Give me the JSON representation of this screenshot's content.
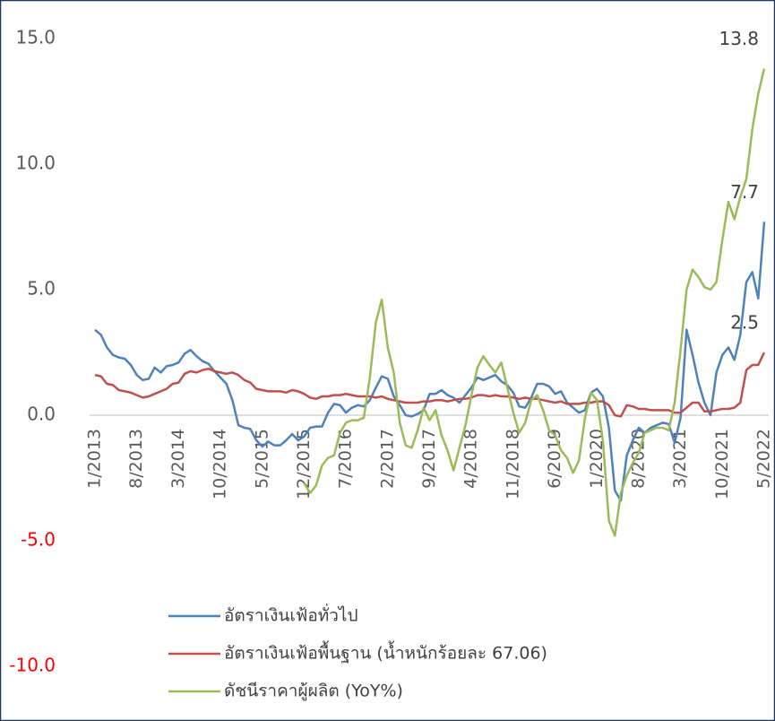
{
  "chart_data": {
    "type": "line",
    "categories": [
      "1/2013",
      null,
      null,
      null,
      null,
      null,
      null,
      "8/2013",
      null,
      null,
      null,
      null,
      null,
      null,
      "3/2014",
      null,
      null,
      null,
      null,
      null,
      null,
      "10/2014",
      null,
      null,
      null,
      null,
      null,
      null,
      "5/2015",
      null,
      null,
      null,
      null,
      null,
      null,
      "12/2015",
      null,
      null,
      null,
      null,
      null,
      null,
      "7/2016",
      null,
      null,
      null,
      null,
      null,
      null,
      "2/2017",
      null,
      null,
      null,
      null,
      null,
      null,
      "9/2017",
      null,
      null,
      null,
      null,
      null,
      null,
      "4/2018",
      null,
      null,
      null,
      null,
      null,
      null,
      "11/2018",
      null,
      null,
      null,
      null,
      null,
      null,
      "6/2019",
      null,
      null,
      null,
      null,
      null,
      null,
      "1/2020",
      null,
      null,
      null,
      null,
      null,
      null,
      "8/2020",
      null,
      null,
      null,
      null,
      null,
      null,
      "3/2021",
      null,
      null,
      null,
      null,
      null,
      null,
      "10/2021",
      null,
      null,
      null,
      null,
      null,
      null,
      "5/2022"
    ],
    "series": [
      {
        "name": "อัตราเงินเฟ้อทั่วไป",
        "color": "#4f81bd",
        "values": [
          3.4,
          3.2,
          2.7,
          2.4,
          2.3,
          2.25,
          2.0,
          1.6,
          1.4,
          1.45,
          1.9,
          1.7,
          1.95,
          2.0,
          2.1,
          2.45,
          2.6,
          2.35,
          2.15,
          2.05,
          1.75,
          1.5,
          1.25,
          0.6,
          -0.4,
          -0.5,
          -0.55,
          -1.0,
          -1.25,
          -1.05,
          -1.2,
          -1.2,
          -1.0,
          -0.75,
          -1.0,
          -0.85,
          -0.5,
          -0.45,
          -0.45,
          0.1,
          0.45,
          0.4,
          0.1,
          0.3,
          0.4,
          0.35,
          0.6,
          1.1,
          1.55,
          1.45,
          0.75,
          0.4,
          0.0,
          -0.05,
          0.05,
          0.2,
          0.85,
          0.85,
          1.0,
          0.8,
          0.7,
          0.5,
          0.8,
          1.1,
          1.5,
          1.4,
          1.5,
          1.6,
          1.35,
          1.2,
          0.9,
          0.35,
          0.3,
          0.7,
          1.25,
          1.25,
          1.15,
          0.85,
          0.95,
          0.5,
          0.3,
          0.1,
          0.2,
          0.9,
          1.05,
          0.75,
          -0.5,
          -3.0,
          -3.4,
          -1.6,
          -1.0,
          -0.5,
          -0.7,
          -0.5,
          -0.4,
          -0.3,
          -0.35,
          -1.1,
          -0.1,
          3.4,
          2.4,
          1.3,
          0.5,
          0.0,
          1.7,
          2.4,
          2.7,
          2.2,
          3.2,
          5.3,
          5.7,
          4.65,
          7.7
        ]
      },
      {
        "name": "อัตราเงินเฟ้อพื้นฐาน (น้ำหนักร้อยละ 67.06)",
        "color": "#c0504d",
        "values": [
          1.6,
          1.55,
          1.25,
          1.2,
          1.0,
          0.95,
          0.9,
          0.8,
          0.7,
          0.75,
          0.85,
          0.95,
          1.05,
          1.25,
          1.3,
          1.65,
          1.75,
          1.7,
          1.8,
          1.85,
          1.75,
          1.7,
          1.65,
          1.7,
          1.6,
          1.4,
          1.3,
          1.05,
          1.0,
          0.95,
          0.95,
          0.95,
          0.9,
          1.0,
          0.95,
          0.85,
          0.7,
          0.65,
          0.75,
          0.75,
          0.8,
          0.8,
          0.85,
          0.8,
          0.75,
          0.75,
          0.75,
          0.7,
          0.75,
          0.65,
          0.6,
          0.55,
          0.5,
          0.5,
          0.5,
          0.55,
          0.55,
          0.6,
          0.6,
          0.55,
          0.6,
          0.65,
          0.65,
          0.7,
          0.8,
          0.8,
          0.75,
          0.8,
          0.75,
          0.75,
          0.7,
          0.65,
          0.7,
          0.65,
          0.65,
          0.6,
          0.55,
          0.5,
          0.55,
          0.45,
          0.45,
          0.45,
          0.5,
          0.5,
          0.55,
          0.55,
          0.4,
          0.0,
          -0.05,
          0.4,
          0.35,
          0.25,
          0.25,
          0.2,
          0.2,
          0.2,
          0.2,
          0.1,
          0.1,
          0.3,
          0.5,
          0.5,
          0.15,
          0.15,
          0.2,
          0.25,
          0.25,
          0.3,
          0.5,
          1.8,
          2.0,
          2.0,
          2.5
        ]
      },
      {
        "name": "ดัชนีราคาผู้ผลิต (YoY%)",
        "color": "#9bbb59",
        "values": [
          null,
          null,
          null,
          null,
          null,
          null,
          null,
          null,
          null,
          null,
          null,
          null,
          null,
          null,
          null,
          null,
          null,
          null,
          null,
          null,
          null,
          null,
          null,
          null,
          null,
          null,
          null,
          null,
          null,
          null,
          null,
          null,
          null,
          null,
          null,
          -2.7,
          -3.1,
          -2.8,
          -2.0,
          -1.7,
          -1.6,
          -0.7,
          -0.3,
          -0.2,
          -0.2,
          -0.1,
          1.5,
          3.7,
          4.6,
          2.7,
          1.7,
          -0.3,
          -1.2,
          -1.3,
          -0.6,
          0.3,
          -0.2,
          0.2,
          -0.8,
          -1.4,
          -2.2,
          -1.3,
          -0.4,
          0.8,
          1.9,
          2.35,
          2.0,
          1.7,
          2.1,
          1.1,
          0.1,
          -0.7,
          -0.3,
          0.6,
          0.8,
          0.2,
          -0.6,
          -0.8,
          -1.4,
          -1.7,
          -2.3,
          -1.8,
          -0.1,
          0.9,
          0.6,
          -1.0,
          -4.2,
          -4.8,
          -3.1,
          -2.4,
          -1.9,
          -1.5,
          -0.7,
          -0.6,
          -0.5,
          -0.5,
          -0.6,
          0.5,
          2.6,
          5.0,
          5.8,
          5.5,
          5.1,
          5.0,
          5.3,
          7.0,
          8.5,
          7.8,
          8.7,
          9.4,
          11.4,
          12.8,
          13.8
        ]
      }
    ],
    "ylim": [
      -10,
      15
    ],
    "yticks": [
      {
        "value": 15,
        "label": "15.0"
      },
      {
        "value": 10,
        "label": "10.0"
      },
      {
        "value": 5,
        "label": "5.0"
      },
      {
        "value": 0,
        "label": "0.0"
      },
      {
        "value": -5,
        "label": "-5.0",
        "color": "#ff0000"
      },
      {
        "value": -10,
        "label": "-10.0",
        "color": "#ff0000"
      }
    ],
    "tick_color": "#595959",
    "grid": false
  }
}
